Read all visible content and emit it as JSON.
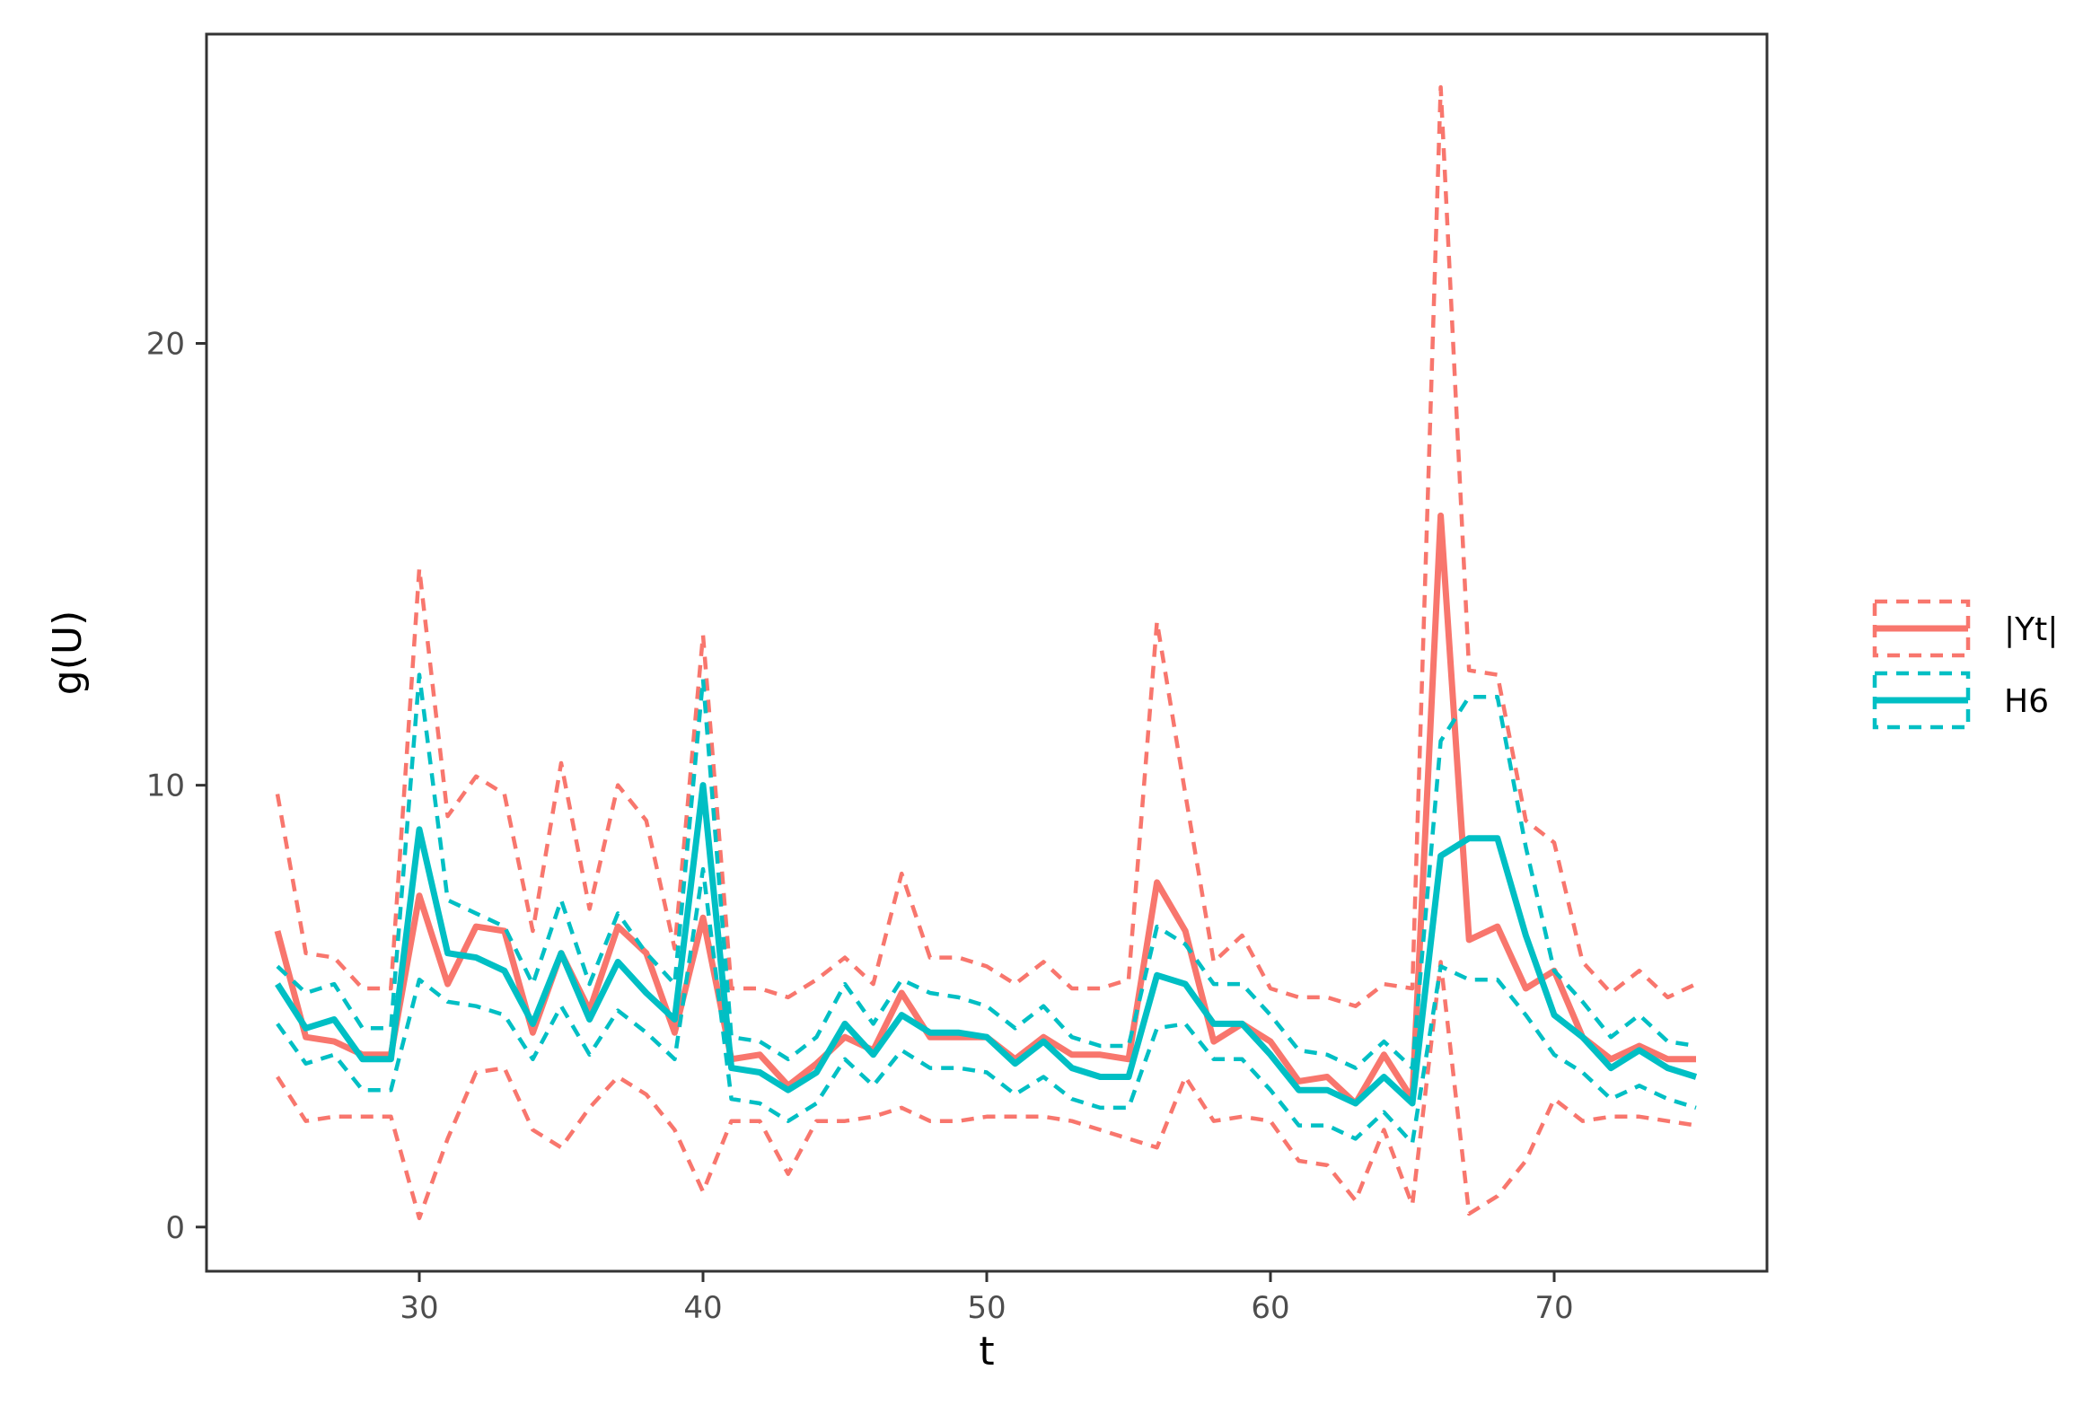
{
  "chart_data": {
    "type": "line",
    "xlabel": "t",
    "ylabel": "g(U)",
    "xlim": [
      22.5,
      77.5
    ],
    "ylim": [
      -1.0,
      27.0
    ],
    "xticks": [
      30,
      40,
      50,
      60,
      70
    ],
    "yticks": [
      0,
      10,
      20
    ],
    "x": [
      25,
      26,
      27,
      28,
      29,
      30,
      31,
      32,
      33,
      34,
      35,
      36,
      37,
      38,
      39,
      40,
      41,
      42,
      43,
      44,
      45,
      46,
      47,
      48,
      49,
      50,
      51,
      52,
      53,
      54,
      55,
      56,
      57,
      58,
      59,
      60,
      61,
      62,
      63,
      64,
      65,
      66,
      67,
      68,
      69,
      70,
      71,
      72,
      73,
      74,
      75
    ],
    "legend_position": "right",
    "grid": false,
    "series": [
      {
        "name": "|Yt|",
        "color": "#F8766D",
        "estimate": [
          6.7,
          4.3,
          4.2,
          3.9,
          3.9,
          7.5,
          5.5,
          6.8,
          6.7,
          4.4,
          6.2,
          4.9,
          6.8,
          6.2,
          4.4,
          7.0,
          3.8,
          3.9,
          3.2,
          3.7,
          4.3,
          4.0,
          5.3,
          4.3,
          4.3,
          4.3,
          3.8,
          4.3,
          3.9,
          3.9,
          3.8,
          7.8,
          6.7,
          4.2,
          4.6,
          4.2,
          3.3,
          3.4,
          2.8,
          3.9,
          2.9,
          16.1,
          6.5,
          6.8,
          5.4,
          5.8,
          4.3,
          3.8,
          4.1,
          3.8,
          3.8
        ],
        "upper": [
          9.8,
          6.2,
          6.1,
          5.4,
          5.4,
          14.9,
          9.3,
          10.2,
          9.8,
          6.7,
          10.5,
          7.2,
          10.0,
          9.2,
          6.3,
          13.4,
          5.4,
          5.4,
          5.2,
          5.6,
          6.1,
          5.5,
          8.0,
          6.1,
          6.1,
          5.9,
          5.5,
          6.0,
          5.4,
          5.4,
          5.6,
          13.7,
          9.8,
          6.0,
          6.6,
          5.4,
          5.2,
          5.2,
          5.0,
          5.5,
          5.4,
          25.8,
          12.6,
          12.5,
          9.2,
          8.7,
          6.0,
          5.3,
          5.8,
          5.2,
          5.5
        ],
        "lower": [
          3.4,
          2.4,
          2.5,
          2.5,
          2.5,
          0.2,
          2.0,
          3.5,
          3.6,
          2.2,
          1.8,
          2.7,
          3.4,
          3.0,
          2.2,
          0.8,
          2.4,
          2.4,
          1.2,
          2.4,
          2.4,
          2.5,
          2.7,
          2.4,
          2.4,
          2.5,
          2.5,
          2.5,
          2.4,
          2.2,
          2.0,
          1.8,
          3.4,
          2.4,
          2.5,
          2.4,
          1.5,
          1.4,
          0.6,
          2.2,
          0.5,
          6.0,
          0.3,
          0.7,
          1.5,
          2.9,
          2.4,
          2.5,
          2.5,
          2.4,
          2.3
        ]
      },
      {
        "name": "H6",
        "color": "#00BFC4",
        "estimate": [
          5.5,
          4.5,
          4.7,
          3.8,
          3.8,
          9.0,
          6.2,
          6.1,
          5.8,
          4.6,
          6.2,
          4.7,
          6.0,
          5.3,
          4.7,
          10.0,
          3.6,
          3.5,
          3.1,
          3.5,
          4.6,
          3.9,
          4.8,
          4.4,
          4.4,
          4.3,
          3.7,
          4.2,
          3.6,
          3.4,
          3.4,
          5.7,
          5.5,
          4.6,
          4.6,
          3.9,
          3.1,
          3.1,
          2.8,
          3.4,
          2.8,
          8.4,
          8.8,
          8.8,
          6.6,
          4.8,
          4.3,
          3.6,
          4.0,
          3.6,
          3.4
        ],
        "upper": [
          5.9,
          5.3,
          5.5,
          4.5,
          4.5,
          12.5,
          7.4,
          7.1,
          6.8,
          5.5,
          7.4,
          5.5,
          7.1,
          6.2,
          5.5,
          12.4,
          4.3,
          4.2,
          3.8,
          4.3,
          5.5,
          4.6,
          5.6,
          5.3,
          5.2,
          5.0,
          4.5,
          5.0,
          4.3,
          4.1,
          4.1,
          6.8,
          6.4,
          5.5,
          5.5,
          4.8,
          4.0,
          3.9,
          3.6,
          4.2,
          3.6,
          11.0,
          12.0,
          12.0,
          8.6,
          5.8,
          5.1,
          4.3,
          4.8,
          4.2,
          4.1
        ],
        "lower": [
          4.6,
          3.7,
          3.9,
          3.1,
          3.1,
          5.6,
          5.1,
          5.0,
          4.8,
          3.8,
          5.0,
          3.9,
          4.9,
          4.4,
          3.8,
          8.1,
          2.9,
          2.8,
          2.4,
          2.8,
          3.8,
          3.2,
          4.0,
          3.6,
          3.6,
          3.5,
          3.0,
          3.4,
          2.9,
          2.7,
          2.7,
          4.5,
          4.6,
          3.8,
          3.8,
          3.1,
          2.3,
          2.3,
          2.0,
          2.6,
          1.9,
          5.9,
          5.6,
          5.6,
          4.8,
          3.9,
          3.5,
          2.9,
          3.2,
          2.9,
          2.7
        ]
      }
    ]
  }
}
